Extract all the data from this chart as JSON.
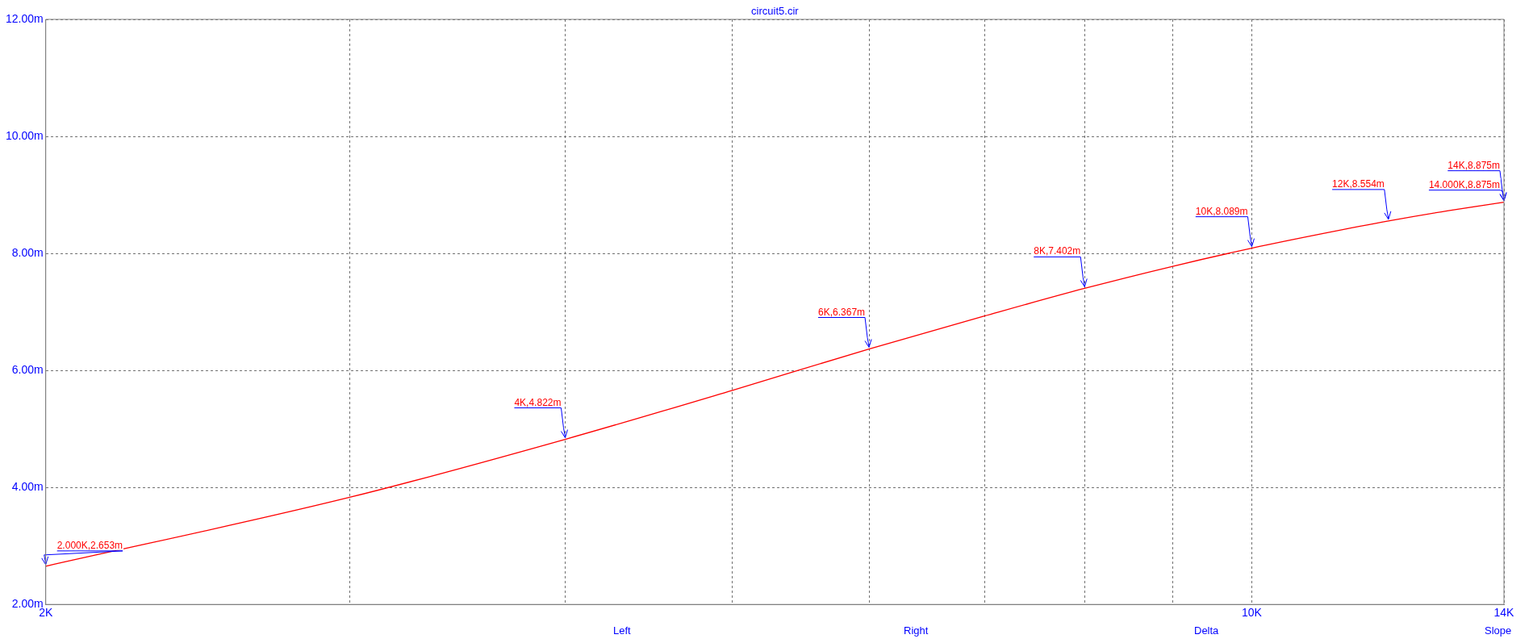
{
  "chart_data": {
    "type": "line",
    "title": "circuit5.cir",
    "x": [
      2000,
      3000,
      4000,
      5000,
      6000,
      7000,
      8000,
      9000,
      10000,
      11000,
      12000,
      13000,
      14000
    ],
    "series": [
      {
        "color": "#ff0000",
        "values": [
          2.653,
          3.83,
          4.822,
          5.66,
          6.367,
          6.93,
          7.402,
          7.78,
          8.089,
          8.34,
          8.554,
          8.73,
          8.875
        ]
      }
    ],
    "log": "x",
    "xlim": [
      2000,
      14000
    ],
    "xticks": [
      {
        "value": 2000,
        "label": "2K"
      },
      {
        "value": 3000,
        "label": null
      },
      {
        "value": 4000,
        "label": null
      },
      {
        "value": 5000,
        "label": null
      },
      {
        "value": 6000,
        "label": null
      },
      {
        "value": 7000,
        "label": null
      },
      {
        "value": 8000,
        "label": null
      },
      {
        "value": 9000,
        "label": null
      },
      {
        "value": 10000,
        "label": "10K"
      },
      {
        "value": 14000,
        "label": "14K"
      }
    ],
    "ylim": [
      2,
      12
    ],
    "yticks": [
      {
        "value": 2,
        "label": "2.00m"
      },
      {
        "value": 4,
        "label": "4.00m"
      },
      {
        "value": 6,
        "label": "6.00m"
      },
      {
        "value": 8,
        "label": "8.00m"
      },
      {
        "value": 10,
        "label": "10.00m"
      },
      {
        "value": 12,
        "label": "12.00m"
      }
    ],
    "grid": true,
    "legend": false,
    "marker": "none",
    "line_style": "solid",
    "annotations": [
      {
        "text": "2.000K,2.653m",
        "x": 2000,
        "y": 2.653
      },
      {
        "text": "4K,4.822m",
        "x": 4000,
        "y": 4.822
      },
      {
        "text": "6K,6.367m",
        "x": 6000,
        "y": 6.367
      },
      {
        "text": "8K,7.402m",
        "x": 8000,
        "y": 7.402
      },
      {
        "text": "10K,8.089m",
        "x": 10000,
        "y": 8.089
      },
      {
        "text": "12K,8.554m",
        "x": 12000,
        "y": 8.554
      },
      {
        "text": "14K,8.875m",
        "x": 14000,
        "y": 8.875
      },
      {
        "text": "14.000K,8.875m",
        "x": 14000,
        "y": 8.875
      },
      "Left",
      "Right",
      "Delta",
      "Slope"
    ]
  }
}
